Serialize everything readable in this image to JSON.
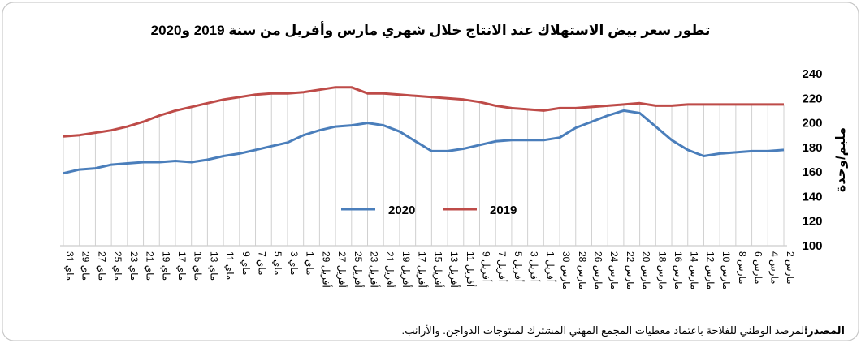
{
  "chart_data": {
    "type": "line",
    "title": "تطور سعر بيض الاستهلاك عند الانتاج خلال شهري مارس وأفريل من سنة 2019 و2020",
    "y_label": "مليم/وحدة",
    "x_direction": "rtl",
    "y_axis_side": "right",
    "grid": false,
    "legend": "center",
    "categories": [
      "2 مارس",
      "4 مارس",
      "6 مارس",
      "8 مارس",
      "10 مارس",
      "12 مارس",
      "14 مارس",
      "16 مارس",
      "18 مارس",
      "20 مارس",
      "22 مارس",
      "24 مارس",
      "26 مارس",
      "28 مارس",
      "30 مارس",
      "1 أفريل",
      "3 أفريل",
      "5 أفريل",
      "7 أفريل",
      "9 أفريل",
      "11 أفريل",
      "13 أفريل",
      "15 أفريل",
      "17 أفريل",
      "19 أفريل",
      "21 أفريل",
      "23 أفريل",
      "25 أفريل",
      "27 أفريل",
      "29 أفريل",
      "1 ماي",
      "3 ماي",
      "5 ماي",
      "7 ماي",
      "9 ماي",
      "11 ماي",
      "13 ماي",
      "15 ماي",
      "17 ماي",
      "19 ماي",
      "21 ماي",
      "23 ماي",
      "25 ماي",
      "27 ماي",
      "29 ماي",
      "31 ماي"
    ],
    "series": [
      {
        "name": "2020",
        "color": "#4a7ebb",
        "values": [
          178,
          177,
          177,
          176,
          175,
          173,
          178,
          186,
          197,
          208,
          210,
          206,
          201,
          196,
          188,
          186,
          186,
          186,
          185,
          182,
          179,
          177,
          177,
          185,
          193,
          198,
          200,
          198,
          197,
          194,
          190,
          184,
          181,
          178,
          175,
          173,
          170,
          168,
          169,
          168,
          168,
          167,
          166,
          163,
          162,
          159
        ]
      },
      {
        "name": "2019",
        "color": "#be4b48",
        "values": [
          215,
          215,
          215,
          215,
          215,
          215,
          215,
          214,
          214,
          216,
          215,
          214,
          213,
          212,
          212,
          210,
          211,
          212,
          214,
          217,
          219,
          220,
          221,
          222,
          223,
          224,
          224,
          229,
          229,
          227,
          225,
          224,
          224,
          223,
          221,
          219,
          216,
          213,
          210,
          206,
          201,
          197,
          194,
          192,
          190,
          189
        ]
      }
    ],
    "ylim": [
      100,
      240
    ],
    "yticks": [
      100,
      120,
      140,
      160,
      180,
      200,
      220,
      240
    ],
    "source_label": "المصدر:",
    "source": "المرصد الوطني للفلاحة باعتماد معطيات المجمع المهني المشترك لمنتوجات الدواجن. والأرانب."
  }
}
